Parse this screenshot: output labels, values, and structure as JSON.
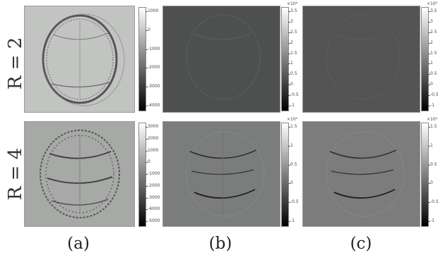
{
  "row_labels": [
    "R = 2",
    "R = 4"
  ],
  "column_captions": [
    "(a)",
    "(b)",
    "(c)"
  ],
  "colorbars": [
    {
      "ticks": [
        "1000",
        "0",
        "-1000",
        "-2000",
        "-3000",
        "-4000"
      ],
      "exponent": ""
    },
    {
      "ticks": [
        "3.5",
        "3",
        "2.5",
        "2",
        "1.5",
        "1",
        "0.5",
        "0",
        "-0.5",
        "-1"
      ],
      "exponent": "×10⁴"
    },
    {
      "ticks": [
        "3.5",
        "3",
        "2.5",
        "2",
        "1.5",
        "1",
        "0.5",
        "0",
        "-0.5",
        "-1"
      ],
      "exponent": "×10⁴"
    },
    {
      "ticks": [
        "3000",
        "2000",
        "1000",
        "0",
        "-1000",
        "-2000",
        "-3000",
        "-4000",
        "-5000"
      ],
      "exponent": ""
    },
    {
      "ticks": [
        "1.5",
        "1",
        "0.5",
        "0",
        "-0.5",
        "-1"
      ],
      "exponent": "×10⁴"
    },
    {
      "ticks": [
        "1.5",
        "1",
        "0.5",
        "0",
        "-0.5",
        "-1"
      ],
      "exponent": "×10⁴"
    }
  ],
  "colors": {
    "panel_a_top": "#c2c4c2",
    "panel_a_bottom": "#a7a9a7",
    "panel_b_top": "#4e4f4f",
    "panel_c_top": "#545454",
    "panel_b_bottom": "#7b7c7c",
    "panel_c_bottom": "#7c7c7c"
  }
}
